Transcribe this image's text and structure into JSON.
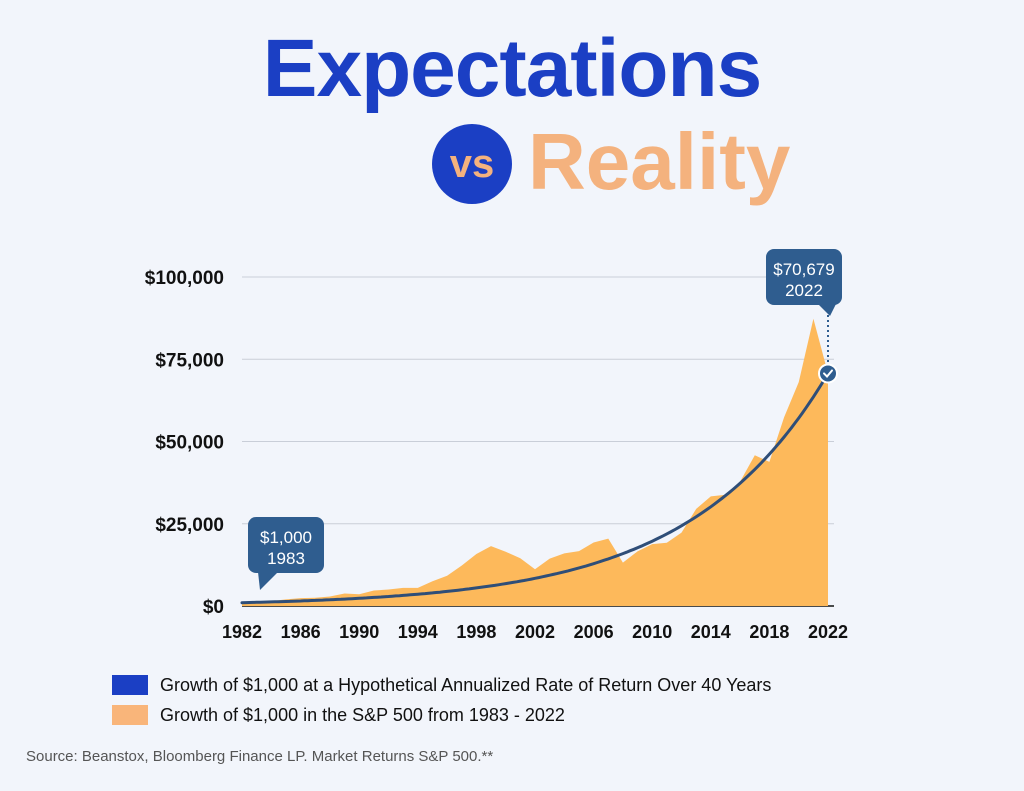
{
  "title": {
    "main": "Expectations",
    "vs": "vs",
    "reality": "Reality"
  },
  "colors": {
    "title_blue": "#1b3fc4",
    "reality_orange": "#f4b27e",
    "area_fill": "#fdb95b",
    "line": "#2f4e78",
    "callout": "#2f5d8f",
    "grid": "#c9ced8"
  },
  "chart_data": {
    "type": "area",
    "title": "Expectations vs Reality",
    "xlabel": "",
    "ylabel": "",
    "xlim": [
      1982,
      2022
    ],
    "ylim": [
      0,
      100000
    ],
    "x_ticks": [
      1982,
      1986,
      1990,
      1994,
      1998,
      2002,
      2006,
      2010,
      2014,
      2018,
      2022
    ],
    "y_ticks": [
      {
        "value": 0,
        "label": "$0"
      },
      {
        "value": 25000,
        "label": "$25,000"
      },
      {
        "value": 50000,
        "label": "$50,000"
      },
      {
        "value": 75000,
        "label": "$75,000"
      },
      {
        "value": 100000,
        "label": "$100,000"
      }
    ],
    "grid": true,
    "series": [
      {
        "name": "Growth of $1,000 in the S&P 500 from 1983 - 2022",
        "kind": "area",
        "x": [
          1982,
          1983,
          1984,
          1985,
          1986,
          1987,
          1988,
          1989,
          1990,
          1991,
          1992,
          1993,
          1994,
          1995,
          1996,
          1997,
          1998,
          1999,
          2000,
          2001,
          2002,
          2003,
          2004,
          2005,
          2006,
          2007,
          2008,
          2009,
          2010,
          2011,
          2012,
          2013,
          2014,
          2015,
          2016,
          2017,
          2018,
          2019,
          2020,
          2021,
          2022
        ],
        "values": [
          1000,
          1200,
          1500,
          2000,
          2400,
          2500,
          2900,
          3800,
          3600,
          4700,
          5000,
          5500,
          5500,
          7500,
          9200,
          12300,
          15800,
          18200,
          16500,
          14500,
          11200,
          14400,
          16000,
          16700,
          19300,
          20500,
          13200,
          16600,
          18800,
          19200,
          22300,
          29500,
          33300,
          33800,
          37800,
          45800,
          43800,
          57400,
          68000,
          87300,
          70679
        ]
      },
      {
        "name": "Growth of $1,000 at a Hypothetical Annualized Rate of Return Over 40 Years",
        "kind": "line",
        "start_year": 1982,
        "start_value": 1000,
        "end_year": 2022,
        "end_value": 70679
      }
    ],
    "annotations": [
      {
        "name": "start-callout",
        "value_text": "$1,000",
        "year_text": "1983",
        "x": 1983,
        "y": 1000
      },
      {
        "name": "end-callout",
        "value_text": "$70,679",
        "year_text": "2022",
        "x": 2022,
        "y": 70679
      }
    ]
  },
  "legend": [
    {
      "label": "Growth of $1,000 at a Hypothetical Annualized Rate of Return Over 40 Years",
      "color": "#1b3fc4"
    },
    {
      "label": "Growth of $1,000 in the S&P 500 from 1983 - 2022",
      "color": "#f9b57a"
    }
  ],
  "source": "Source: Beanstox, Bloomberg Finance LP. Market Returns S&P 500.**"
}
